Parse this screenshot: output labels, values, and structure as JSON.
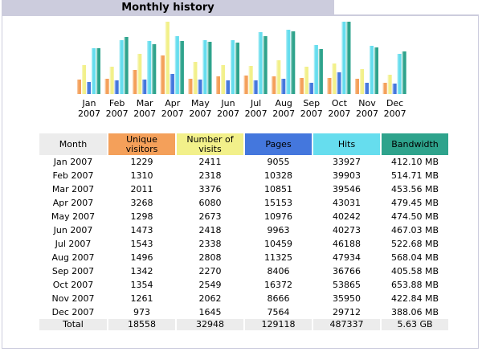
{
  "panel": {
    "title": "Monthly history"
  },
  "table": {
    "headers": {
      "month": "Month",
      "visitors": "Unique visitors",
      "visits": "Number of visits",
      "pages": "Pages",
      "hits": "Hits",
      "bandwidth": "Bandwidth"
    },
    "rows": [
      {
        "month": "Jan 2007",
        "visitors": "1229",
        "visits": "2411",
        "pages": "9055",
        "hits": "33927",
        "bandwidth": "412.10 MB"
      },
      {
        "month": "Feb 2007",
        "visitors": "1310",
        "visits": "2318",
        "pages": "10328",
        "hits": "39903",
        "bandwidth": "514.71 MB"
      },
      {
        "month": "Mar 2007",
        "visitors": "2011",
        "visits": "3376",
        "pages": "10851",
        "hits": "39546",
        "bandwidth": "453.56 MB"
      },
      {
        "month": "Apr 2007",
        "visitors": "3268",
        "visits": "6080",
        "pages": "15153",
        "hits": "43031",
        "bandwidth": "479.45 MB"
      },
      {
        "month": "May 2007",
        "visitors": "1298",
        "visits": "2673",
        "pages": "10976",
        "hits": "40242",
        "bandwidth": "474.50 MB"
      },
      {
        "month": "Jun 2007",
        "visitors": "1473",
        "visits": "2418",
        "pages": "9963",
        "hits": "40273",
        "bandwidth": "467.03 MB"
      },
      {
        "month": "Jul 2007",
        "visitors": "1543",
        "visits": "2338",
        "pages": "10459",
        "hits": "46188",
        "bandwidth": "522.68 MB"
      },
      {
        "month": "Aug 2007",
        "visitors": "1496",
        "visits": "2808",
        "pages": "11325",
        "hits": "47934",
        "bandwidth": "568.04 MB"
      },
      {
        "month": "Sep 2007",
        "visitors": "1342",
        "visits": "2270",
        "pages": "8406",
        "hits": "36766",
        "bandwidth": "405.58 MB"
      },
      {
        "month": "Oct 2007",
        "visitors": "1354",
        "visits": "2549",
        "pages": "16372",
        "hits": "53865",
        "bandwidth": "653.88 MB"
      },
      {
        "month": "Nov 2007",
        "visitors": "1261",
        "visits": "2062",
        "pages": "8666",
        "hits": "35950",
        "bandwidth": "422.84 MB"
      },
      {
        "month": "Dec 2007",
        "visitors": "973",
        "visits": "1645",
        "pages": "7564",
        "hits": "29712",
        "bandwidth": "388.06 MB"
      }
    ],
    "total": {
      "month": "Total",
      "visitors": "18558",
      "visits": "32948",
      "pages": "129118",
      "hits": "487337",
      "bandwidth": "5.63 GB"
    }
  },
  "chart_data": {
    "type": "bar",
    "categories": [
      [
        "Jan",
        "2007"
      ],
      [
        "Feb",
        "2007"
      ],
      [
        "Mar",
        "2007"
      ],
      [
        "Apr",
        "2007"
      ],
      [
        "May",
        "2007"
      ],
      [
        "Jun",
        "2007"
      ],
      [
        "Jul",
        "2007"
      ],
      [
        "Aug",
        "2007"
      ],
      [
        "Sep",
        "2007"
      ],
      [
        "Oct",
        "2007"
      ],
      [
        "Nov",
        "2007"
      ],
      [
        "Dec",
        "2007"
      ]
    ],
    "series": [
      {
        "key": "visitors",
        "color": "#f4a05a",
        "values": [
          1229,
          1310,
          2011,
          3268,
          1298,
          1473,
          1543,
          1496,
          1342,
          1354,
          1261,
          973
        ]
      },
      {
        "key": "visits",
        "color": "#f2f08a",
        "values": [
          2411,
          2318,
          3376,
          6080,
          2673,
          2418,
          2338,
          2808,
          2270,
          2549,
          2062,
          1645
        ]
      },
      {
        "key": "pages",
        "color": "#4477dd",
        "values": [
          9055,
          10328,
          10851,
          15153,
          10976,
          9963,
          10459,
          11325,
          8406,
          16372,
          8666,
          7564
        ]
      },
      {
        "key": "hits",
        "color": "#66ddee",
        "values": [
          33927,
          39903,
          39546,
          43031,
          40242,
          40273,
          46188,
          47934,
          36766,
          53865,
          35950,
          29712
        ]
      },
      {
        "key": "bandwidth",
        "color": "#2ea38c",
        "values": [
          412.1,
          514.71,
          453.56,
          479.45,
          474.5,
          467.03,
          522.68,
          568.04,
          405.58,
          653.88,
          422.84,
          388.06
        ]
      }
    ],
    "grid": false,
    "legend": "none"
  }
}
